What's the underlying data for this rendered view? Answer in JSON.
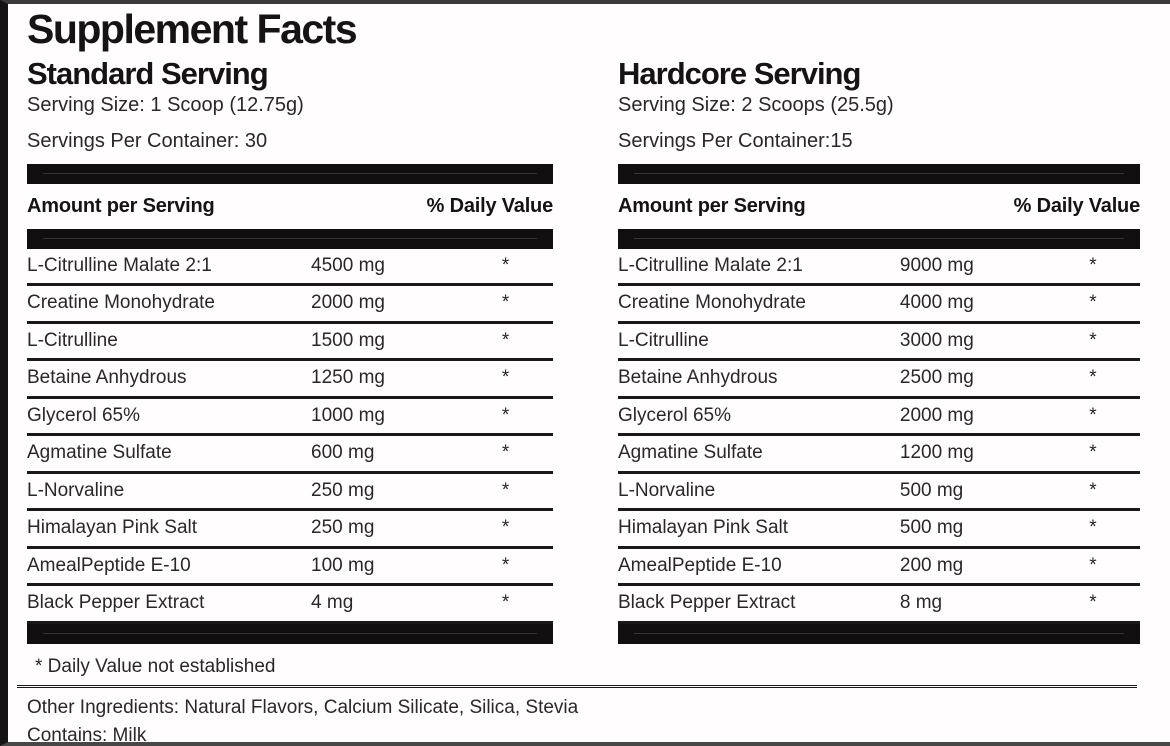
{
  "title": "Supplement Facts",
  "table_header": {
    "amount_label": "Amount per Serving",
    "daily_value_label": "% Daily Value"
  },
  "panels": [
    {
      "name": "Standard Serving",
      "serving_size": "Serving Size: 1 Scoop (12.75g)",
      "servings_per_container": "Servings Per Container: 30",
      "rows": [
        {
          "ingredient": "L-Citrulline Malate 2:1",
          "amount": "4500 mg",
          "dv": "*"
        },
        {
          "ingredient": "Creatine Monohydrate",
          "amount": "2000 mg",
          "dv": "*"
        },
        {
          "ingredient": "L-Citrulline",
          "amount": "1500 mg",
          "dv": "*"
        },
        {
          "ingredient": "Betaine Anhydrous",
          "amount": "1250 mg",
          "dv": "*"
        },
        {
          "ingredient": "Glycerol 65%",
          "amount": "1000 mg",
          "dv": "*"
        },
        {
          "ingredient": "Agmatine Sulfate",
          "amount": "600 mg",
          "dv": "*"
        },
        {
          "ingredient": "L-Norvaline",
          "amount": "250 mg",
          "dv": "*"
        },
        {
          "ingredient": "Himalayan Pink Salt",
          "amount": "250 mg",
          "dv": "*"
        },
        {
          "ingredient": "AmealPeptide E-10",
          "amount": "100 mg",
          "dv": "*"
        },
        {
          "ingredient": "Black Pepper Extract",
          "amount": "4 mg",
          "dv": "*"
        }
      ]
    },
    {
      "name": "Hardcore Serving",
      "serving_size": "Serving Size: 2 Scoops (25.5g)",
      "servings_per_container": "Servings Per Container:15",
      "rows": [
        {
          "ingredient": "L-Citrulline Malate 2:1",
          "amount": "9000 mg",
          "dv": "*"
        },
        {
          "ingredient": "Creatine Monohydrate",
          "amount": "4000 mg",
          "dv": "*"
        },
        {
          "ingredient": "L-Citrulline",
          "amount": "3000 mg",
          "dv": "*"
        },
        {
          "ingredient": "Betaine Anhydrous",
          "amount": "2500 mg",
          "dv": "*"
        },
        {
          "ingredient": "Glycerol 65%",
          "amount": "2000 mg",
          "dv": "*"
        },
        {
          "ingredient": "Agmatine Sulfate",
          "amount": "1200 mg",
          "dv": "*"
        },
        {
          "ingredient": "L-Norvaline",
          "amount": "500 mg",
          "dv": "*"
        },
        {
          "ingredient": "Himalayan Pink Salt",
          "amount": "500 mg",
          "dv": "*"
        },
        {
          "ingredient": "AmealPeptide E-10",
          "amount": "200 mg",
          "dv": "*"
        },
        {
          "ingredient": "Black Pepper Extract",
          "amount": "8 mg",
          "dv": "*"
        }
      ]
    }
  ],
  "footnote": "* Daily Value not established",
  "other_ingredients": "Other Ingredients: Natural Flavors, Calcium Silicate, Silica, Stevia",
  "contains": "Contains: Milk",
  "colors": {
    "text": "#242021",
    "bar": "#100e0f",
    "background": "#fffdfe",
    "border": "#161314"
  }
}
